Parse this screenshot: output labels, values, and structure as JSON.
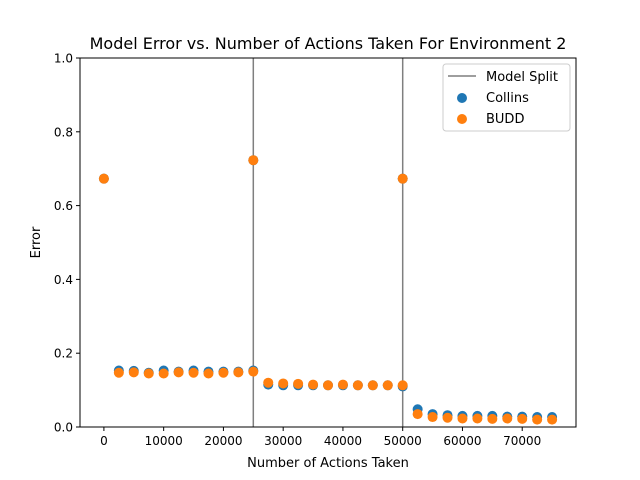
{
  "chart_data": {
    "type": "scatter",
    "title": "Model Error vs. Number of Actions Taken For Environment 2",
    "xlabel": "Number of Actions Taken",
    "ylabel": "Error",
    "xlim": [
      -4000,
      79000
    ],
    "ylim": [
      0.0,
      1.0
    ],
    "x_ticks": [
      0,
      10000,
      20000,
      30000,
      40000,
      50000,
      60000,
      70000
    ],
    "y_ticks": [
      0.0,
      0.2,
      0.4,
      0.6,
      0.8,
      1.0
    ],
    "grid": false,
    "legend_position": "upper right",
    "vertical_lines": {
      "name": "Model Split",
      "color": "#7f7f7f",
      "x": [
        25000,
        50000
      ]
    },
    "series": [
      {
        "name": "Collins",
        "color": "#1f77b4",
        "points": [
          [
            0,
            0.673
          ],
          [
            2500,
            0.153
          ],
          [
            5000,
            0.152
          ],
          [
            7500,
            0.147
          ],
          [
            10000,
            0.153
          ],
          [
            12500,
            0.15
          ],
          [
            15000,
            0.153
          ],
          [
            17500,
            0.15
          ],
          [
            20000,
            0.15
          ],
          [
            22500,
            0.15
          ],
          [
            25000,
            0.723
          ],
          [
            25000,
            0.153
          ],
          [
            27500,
            0.115
          ],
          [
            30000,
            0.113
          ],
          [
            32500,
            0.113
          ],
          [
            35000,
            0.113
          ],
          [
            37500,
            0.113
          ],
          [
            40000,
            0.113
          ],
          [
            42500,
            0.113
          ],
          [
            45000,
            0.113
          ],
          [
            47500,
            0.113
          ],
          [
            50000,
            0.673
          ],
          [
            50000,
            0.11
          ],
          [
            52500,
            0.048
          ],
          [
            55000,
            0.035
          ],
          [
            57500,
            0.032
          ],
          [
            60000,
            0.03
          ],
          [
            62500,
            0.03
          ],
          [
            65000,
            0.03
          ],
          [
            67500,
            0.028
          ],
          [
            70000,
            0.028
          ],
          [
            72500,
            0.027
          ],
          [
            75000,
            0.027
          ]
        ]
      },
      {
        "name": "BUDD",
        "color": "#ff7f0e",
        "points": [
          [
            0,
            0.673
          ],
          [
            2500,
            0.147
          ],
          [
            5000,
            0.148
          ],
          [
            7500,
            0.145
          ],
          [
            10000,
            0.145
          ],
          [
            12500,
            0.148
          ],
          [
            15000,
            0.147
          ],
          [
            17500,
            0.145
          ],
          [
            20000,
            0.147
          ],
          [
            22500,
            0.148
          ],
          [
            25000,
            0.723
          ],
          [
            25000,
            0.15
          ],
          [
            27500,
            0.12
          ],
          [
            30000,
            0.118
          ],
          [
            32500,
            0.117
          ],
          [
            35000,
            0.115
          ],
          [
            37500,
            0.113
          ],
          [
            40000,
            0.115
          ],
          [
            42500,
            0.113
          ],
          [
            45000,
            0.113
          ],
          [
            47500,
            0.113
          ],
          [
            50000,
            0.673
          ],
          [
            50000,
            0.113
          ],
          [
            52500,
            0.035
          ],
          [
            55000,
            0.027
          ],
          [
            57500,
            0.025
          ],
          [
            60000,
            0.023
          ],
          [
            62500,
            0.023
          ],
          [
            65000,
            0.022
          ],
          [
            67500,
            0.023
          ],
          [
            70000,
            0.022
          ],
          [
            72500,
            0.02
          ],
          [
            75000,
            0.02
          ]
        ]
      }
    ]
  }
}
